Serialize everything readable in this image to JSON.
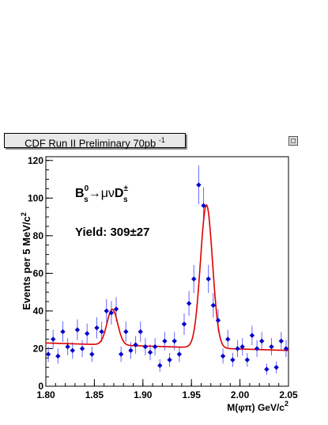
{
  "chart_data": {
    "type": "scatter",
    "title": "CDF Run II Preliminary 70pb",
    "title_superscript": "-1",
    "xlabel": "M(φπ) GeV/c",
    "xlabel_superscript": "2",
    "ylabel": "Events per 5 MeV/c",
    "ylabel_superscript": "2",
    "xlim": [
      1.8,
      2.05
    ],
    "ylim": [
      0,
      122
    ],
    "x_ticks": [
      "1.80",
      "1.85",
      "1.90",
      "1.95",
      "2.00",
      "2.05"
    ],
    "y_ticks": [
      "0",
      "20",
      "40",
      "60",
      "80",
      "100",
      "120"
    ],
    "annotation_decay": {
      "B": "B",
      "B_sup": "0",
      "B_sub": "s",
      "arrow": "→μν",
      "D": "D",
      "D_sup": "±",
      "D_sub": "s"
    },
    "annotation_yield": "Yield: 309±27",
    "series": [
      {
        "marker_color": "#0000cc",
        "errorbar_color": "#6666ff",
        "x": [
          1.8025,
          1.8075,
          1.8125,
          1.8175,
          1.8225,
          1.8275,
          1.8325,
          1.8375,
          1.8425,
          1.8475,
          1.8525,
          1.8575,
          1.8625,
          1.8675,
          1.8725,
          1.8775,
          1.8825,
          1.8875,
          1.8925,
          1.8975,
          1.9025,
          1.9075,
          1.9125,
          1.9175,
          1.9225,
          1.9275,
          1.9325,
          1.9375,
          1.9425,
          1.9475,
          1.9525,
          1.9575,
          1.9625,
          1.9675,
          1.9725,
          1.9775,
          1.9825,
          1.9875,
          1.9925,
          1.9975,
          2.0025,
          2.0075,
          2.0125,
          2.0175,
          2.0225,
          2.0275,
          2.0325,
          2.0375,
          2.0425,
          2.0475
        ],
        "y": [
          17,
          25,
          16,
          29,
          21,
          19,
          30,
          20,
          28,
          17,
          31,
          29,
          40,
          39,
          41,
          17,
          29,
          19,
          22,
          29,
          21,
          18,
          21,
          11,
          24,
          14,
          24,
          17,
          33,
          44,
          57,
          107,
          96,
          57,
          43,
          35,
          16,
          25,
          14,
          20,
          21,
          14,
          27,
          20,
          24,
          9,
          21,
          10,
          24,
          20
        ],
        "yerr": [
          4.1,
          5.0,
          4.0,
          5.4,
          4.6,
          4.4,
          5.5,
          4.5,
          5.3,
          4.1,
          5.6,
          5.4,
          6.3,
          6.2,
          6.4,
          4.1,
          5.4,
          4.4,
          4.7,
          5.4,
          4.6,
          4.2,
          4.6,
          3.3,
          4.9,
          3.7,
          4.9,
          4.1,
          5.7,
          6.6,
          7.5,
          10.3,
          9.8,
          7.5,
          6.6,
          5.9,
          4.0,
          5.0,
          3.7,
          4.5,
          4.6,
          3.7,
          5.2,
          4.5,
          4.9,
          3.0,
          4.6,
          3.2,
          4.9,
          4.5
        ]
      }
    ],
    "fit": {
      "color": "#dd0000",
      "background_intercept": 23.0,
      "background_slope": -16.0,
      "peaks": [
        {
          "mean": 1.8685,
          "sigma": 0.0055,
          "amplitude": 19.0
        },
        {
          "mean": 1.9655,
          "sigma": 0.0062,
          "amplitude": 76.0
        }
      ]
    },
    "grid": false,
    "legend": "none"
  }
}
